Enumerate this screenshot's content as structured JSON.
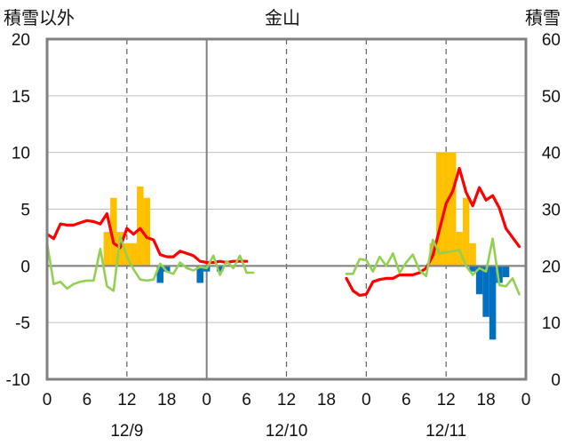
{
  "chart_data": {
    "type": "bar+line",
    "title": "金山",
    "left_axis_label": "積雪以外",
    "right_axis_label": "積雪",
    "y_left": {
      "min": -10,
      "max": 20,
      "ticks": [
        "-10",
        "-5",
        "0",
        "5",
        "10",
        "15",
        "20"
      ],
      "tick_values": [
        -10,
        -5,
        0,
        5,
        10,
        15,
        20
      ]
    },
    "y_right": {
      "min": 0,
      "max": 60,
      "ticks": [
        "0",
        "10",
        "20",
        "30",
        "40",
        "50",
        "60"
      ],
      "tick_values": [
        0,
        10,
        20,
        30,
        40,
        50,
        60
      ]
    },
    "x": {
      "hours_total": 72,
      "tick_labels": [
        "0",
        "6",
        "12",
        "18",
        "0",
        "6",
        "12",
        "18",
        "0",
        "6",
        "12",
        "18",
        "0"
      ],
      "tick_hours": [
        0,
        6,
        12,
        18,
        24,
        30,
        36,
        42,
        48,
        54,
        60,
        66,
        72
      ],
      "date_labels": [
        "12/9",
        "12/10",
        "12/11"
      ],
      "date_label_hours": [
        12,
        36,
        60
      ],
      "dashed_grid_hours": [
        12,
        36,
        48,
        60
      ],
      "solid_grid_hours": [
        24
      ]
    },
    "colors": {
      "precip": "#ffc000",
      "snowfall_neg": "#0070c0",
      "temperature": "#ff0000",
      "humidity_line": "#92d050",
      "baseline": "#7030a0",
      "grid": "#808080",
      "frame": "#808080"
    },
    "series": [
      {
        "kind": "bar",
        "axis": "left",
        "color": "#ffc000",
        "points": [
          [
            9,
            3
          ],
          [
            10,
            6
          ],
          [
            11,
            3
          ],
          [
            12,
            2
          ],
          [
            13,
            2
          ],
          [
            14,
            7
          ],
          [
            15,
            6
          ],
          [
            58,
            2
          ],
          [
            59,
            10
          ],
          [
            60,
            10
          ],
          [
            61,
            10
          ],
          [
            62,
            3
          ],
          [
            63,
            6
          ],
          [
            64,
            2
          ]
        ]
      },
      {
        "kind": "bar",
        "axis": "left",
        "color": "#0070c0",
        "points": [
          [
            17,
            -1.5
          ],
          [
            18,
            -0.5
          ],
          [
            23,
            -1.5
          ],
          [
            24,
            -0.5
          ],
          [
            26,
            -0.5
          ],
          [
            64,
            -0.5
          ],
          [
            65,
            -2.5
          ],
          [
            66,
            -4.5
          ],
          [
            67,
            -6.5
          ],
          [
            68,
            -1.5
          ],
          [
            69,
            -1
          ]
        ]
      },
      {
        "kind": "line",
        "axis": "left",
        "color": "#ff0000",
        "width": 3.2,
        "segments": [
          [
            [
              0,
              2.8
            ],
            [
              1,
              2.4
            ],
            [
              2,
              3.7
            ],
            [
              3,
              3.6
            ],
            [
              4,
              3.6
            ],
            [
              5,
              3.8
            ],
            [
              6,
              4.0
            ],
            [
              7,
              3.9
            ],
            [
              8,
              3.7
            ],
            [
              9,
              4.6
            ],
            [
              10,
              2.0
            ],
            [
              11,
              1.6
            ],
            [
              12,
              3.3
            ],
            [
              13,
              2.8
            ],
            [
              14,
              3.3
            ],
            [
              15,
              2.5
            ],
            [
              16,
              2.3
            ],
            [
              17,
              1.0
            ],
            [
              18,
              0.8
            ],
            [
              19,
              0.8
            ],
            [
              20,
              1.3
            ],
            [
              21,
              1.1
            ],
            [
              22,
              0.9
            ],
            [
              23,
              0.4
            ],
            [
              24,
              0.3
            ],
            [
              25,
              0.3
            ],
            [
              26,
              0.4
            ],
            [
              27,
              0.3
            ],
            [
              28,
              0.4
            ],
            [
              29,
              0.4
            ],
            [
              30,
              0.4
            ]
          ],
          [
            [
              45,
              -1.1
            ],
            [
              46,
              -2.2
            ],
            [
              47,
              -2.6
            ],
            [
              48,
              -2.5
            ],
            [
              49,
              -1.4
            ],
            [
              50,
              -1.2
            ],
            [
              51,
              -1.1
            ],
            [
              52,
              -1.1
            ],
            [
              53,
              -0.8
            ],
            [
              54,
              -0.8
            ],
            [
              55,
              -0.8
            ],
            [
              56,
              -0.6
            ],
            [
              57,
              -0.2
            ],
            [
              58,
              0.9
            ],
            [
              59,
              3.2
            ],
            [
              60,
              5.5
            ],
            [
              61,
              6.6
            ],
            [
              62,
              8.6
            ],
            [
              63,
              6.5
            ],
            [
              64,
              5.3
            ],
            [
              65,
              6.9
            ],
            [
              66,
              5.8
            ],
            [
              67,
              6.2
            ],
            [
              68,
              5.1
            ],
            [
              69,
              3.3
            ],
            [
              70,
              2.5
            ],
            [
              71,
              1.7
            ]
          ]
        ]
      },
      {
        "kind": "line",
        "axis": "left",
        "color": "#92d050",
        "width": 2.6,
        "segments": [
          [
            [
              0,
              2.0
            ],
            [
              1,
              -1.6
            ],
            [
              2,
              -1.4
            ],
            [
              3,
              -2.0
            ],
            [
              4,
              -1.6
            ],
            [
              5,
              -1.4
            ],
            [
              6,
              -1.3
            ],
            [
              7,
              -1.3
            ],
            [
              8,
              1.5
            ],
            [
              9,
              -1.8
            ],
            [
              10,
              -2.2
            ],
            [
              11,
              2.6
            ],
            [
              12,
              0.8
            ],
            [
              13,
              -0.3
            ],
            [
              14,
              -1.2
            ],
            [
              15,
              -1.3
            ],
            [
              16,
              -1.2
            ],
            [
              17,
              0.2
            ],
            [
              18,
              -0.5
            ],
            [
              19,
              -0.7
            ],
            [
              20,
              0.3
            ],
            [
              21,
              -0.2
            ],
            [
              22,
              -0.4
            ],
            [
              23,
              -0.1
            ],
            [
              24,
              -0.2
            ],
            [
              25,
              0.9
            ],
            [
              26,
              -0.8
            ],
            [
              27,
              0.4
            ],
            [
              28,
              -0.2
            ],
            [
              29,
              0.9
            ],
            [
              30,
              -0.6
            ],
            [
              31,
              -0.6
            ]
          ],
          [
            [
              45,
              -0.7
            ],
            [
              46,
              -0.7
            ],
            [
              47,
              0.6
            ],
            [
              48,
              0.5
            ],
            [
              49,
              -0.5
            ],
            [
              50,
              0.8
            ],
            [
              51,
              0.0
            ],
            [
              52,
              1.1
            ],
            [
              53,
              -0.6
            ],
            [
              54,
              0.3
            ],
            [
              55,
              1.0
            ],
            [
              56,
              -0.4
            ],
            [
              57,
              -0.9
            ],
            [
              58,
              2.3
            ],
            [
              59,
              1.1
            ],
            [
              60,
              1.2
            ],
            [
              61,
              1.3
            ],
            [
              62,
              1.4
            ],
            [
              63,
              0.0
            ],
            [
              64,
              -0.8
            ],
            [
              65,
              -0.2
            ],
            [
              66,
              -0.5
            ],
            [
              67,
              2.4
            ],
            [
              68,
              -1.7
            ],
            [
              69,
              -1.8
            ],
            [
              70,
              -1.1
            ],
            [
              71,
              -2.5
            ]
          ]
        ]
      },
      {
        "kind": "line",
        "axis": "left",
        "color": "#7030a0",
        "width": 3,
        "segments": [
          [
            [
              0,
              -10
            ],
            [
              31,
              -10
            ]
          ],
          [
            [
              45,
              -10
            ],
            [
              71,
              -10
            ]
          ]
        ]
      }
    ]
  }
}
